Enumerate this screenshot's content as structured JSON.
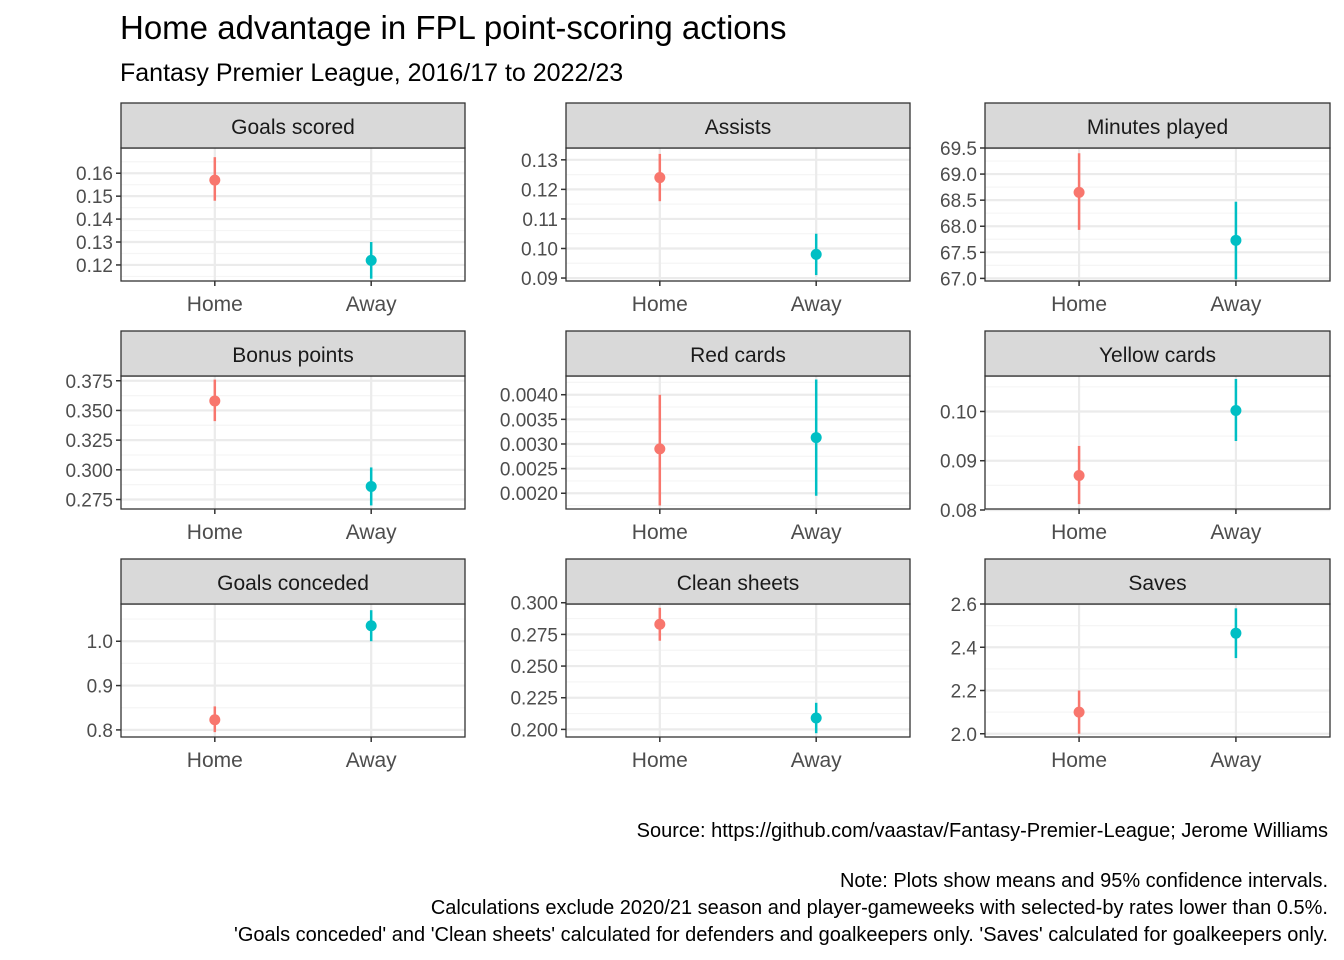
{
  "title": "Home advantage in FPL point-scoring actions",
  "subtitle": "Fantasy Premier League, 2016/17 to 2022/23",
  "caption": {
    "source": "Source: https://github.com/vaastav/Fantasy-Premier-League; Jerome Williams",
    "note_lines": [
      "Note: Plots show means and 95% confidence intervals.",
      "Calculations exclude 2020/21 season and player-gameweeks with selected-by rates lower than 0.5%.",
      "'Goals conceded' and 'Clean sheets' calculated for defenders and goalkeepers only. 'Saves' calculated for goalkeepers only."
    ]
  },
  "colors": {
    "home": "#F8766D",
    "away": "#00BFC4",
    "strip": "#D9D9D9",
    "grid_major": "#EBEBEB",
    "grid_minor": "#F5F5F5",
    "axis_text": "#4D4D4D"
  },
  "chart_data": [
    {
      "type": "scatter",
      "facet": "Goals scored",
      "categories": [
        "Home",
        "Away"
      ],
      "mean": [
        0.157,
        0.122
      ],
      "ci_low": [
        0.148,
        0.114
      ],
      "ci_high": [
        0.167,
        0.13
      ],
      "ylim": [
        0.113,
        0.171
      ],
      "yticks": [
        0.12,
        0.13,
        0.14,
        0.15,
        0.16
      ],
      "ytick_labels": [
        "0.12",
        "0.13",
        "0.14",
        "0.15",
        "0.16"
      ]
    },
    {
      "type": "scatter",
      "facet": "Assists",
      "categories": [
        "Home",
        "Away"
      ],
      "mean": [
        0.124,
        0.098
      ],
      "ci_low": [
        0.116,
        0.091
      ],
      "ci_high": [
        0.132,
        0.105
      ],
      "ylim": [
        0.089,
        0.134
      ],
      "yticks": [
        0.09,
        0.1,
        0.11,
        0.12,
        0.13
      ],
      "ytick_labels": [
        "0.09",
        "0.10",
        "0.11",
        "0.12",
        "0.13"
      ]
    },
    {
      "type": "scatter",
      "facet": "Minutes played",
      "categories": [
        "Home",
        "Away"
      ],
      "mean": [
        68.65,
        67.73
      ],
      "ci_low": [
        67.93,
        66.98
      ],
      "ci_high": [
        69.4,
        68.47
      ],
      "ylim": [
        66.95,
        69.5
      ],
      "yticks": [
        67.0,
        67.5,
        68.0,
        68.5,
        69.0,
        69.5
      ],
      "ytick_labels": [
        "67.0",
        "67.5",
        "68.0",
        "68.5",
        "69.0",
        "69.5"
      ]
    },
    {
      "type": "scatter",
      "facet": "Bonus points",
      "categories": [
        "Home",
        "Away"
      ],
      "mean": [
        0.358,
        0.286
      ],
      "ci_low": [
        0.341,
        0.27
      ],
      "ci_high": [
        0.376,
        0.302
      ],
      "ylim": [
        0.267,
        0.379
      ],
      "yticks": [
        0.275,
        0.3,
        0.325,
        0.35,
        0.375
      ],
      "ytick_labels": [
        "0.275",
        "0.300",
        "0.325",
        "0.350",
        "0.375"
      ]
    },
    {
      "type": "scatter",
      "facet": "Red cards",
      "categories": [
        "Home",
        "Away"
      ],
      "mean": [
        0.0029,
        0.00313
      ],
      "ci_low": [
        0.00175,
        0.00195
      ],
      "ci_high": [
        0.004,
        0.00431
      ],
      "ylim": [
        0.00168,
        0.00438
      ],
      "yticks": [
        0.002,
        0.0025,
        0.003,
        0.0035,
        0.004
      ],
      "ytick_labels": [
        "0.0020",
        "0.0025",
        "0.0030",
        "0.0035",
        "0.0040"
      ]
    },
    {
      "type": "scatter",
      "facet": "Yellow cards",
      "categories": [
        "Home",
        "Away"
      ],
      "mean": [
        0.087,
        0.1002
      ],
      "ci_low": [
        0.0812,
        0.094
      ],
      "ci_high": [
        0.093,
        0.1066
      ],
      "ylim": [
        0.0802,
        0.1072
      ],
      "yticks": [
        0.08,
        0.09,
        0.1
      ],
      "ytick_labels": [
        "0.08",
        "0.09",
        "0.10"
      ]
    },
    {
      "type": "scatter",
      "facet": "Goals conceded",
      "categories": [
        "Home",
        "Away"
      ],
      "mean": [
        0.823,
        1.035
      ],
      "ci_low": [
        0.795,
        1.0
      ],
      "ci_high": [
        0.853,
        1.07
      ],
      "ylim": [
        0.784,
        1.084
      ],
      "yticks": [
        0.8,
        0.9,
        1.0
      ],
      "ytick_labels": [
        "0.8",
        "0.9",
        "1.0"
      ]
    },
    {
      "type": "scatter",
      "facet": "Clean sheets",
      "categories": [
        "Home",
        "Away"
      ],
      "mean": [
        0.283,
        0.209
      ],
      "ci_low": [
        0.27,
        0.197
      ],
      "ci_high": [
        0.296,
        0.221
      ],
      "ylim": [
        0.194,
        0.299
      ],
      "yticks": [
        0.2,
        0.225,
        0.25,
        0.275,
        0.3
      ],
      "ytick_labels": [
        "0.200",
        "0.225",
        "0.250",
        "0.275",
        "0.300"
      ]
    },
    {
      "type": "scatter",
      "facet": "Saves",
      "categories": [
        "Home",
        "Away"
      ],
      "mean": [
        2.1,
        2.465
      ],
      "ci_low": [
        2.0,
        2.35
      ],
      "ci_high": [
        2.2,
        2.58
      ],
      "ylim": [
        1.985,
        2.6
      ],
      "yticks": [
        2.0,
        2.2,
        2.4,
        2.6
      ],
      "ytick_labels": [
        "2.0",
        "2.2",
        "2.4",
        "2.6"
      ]
    }
  ]
}
